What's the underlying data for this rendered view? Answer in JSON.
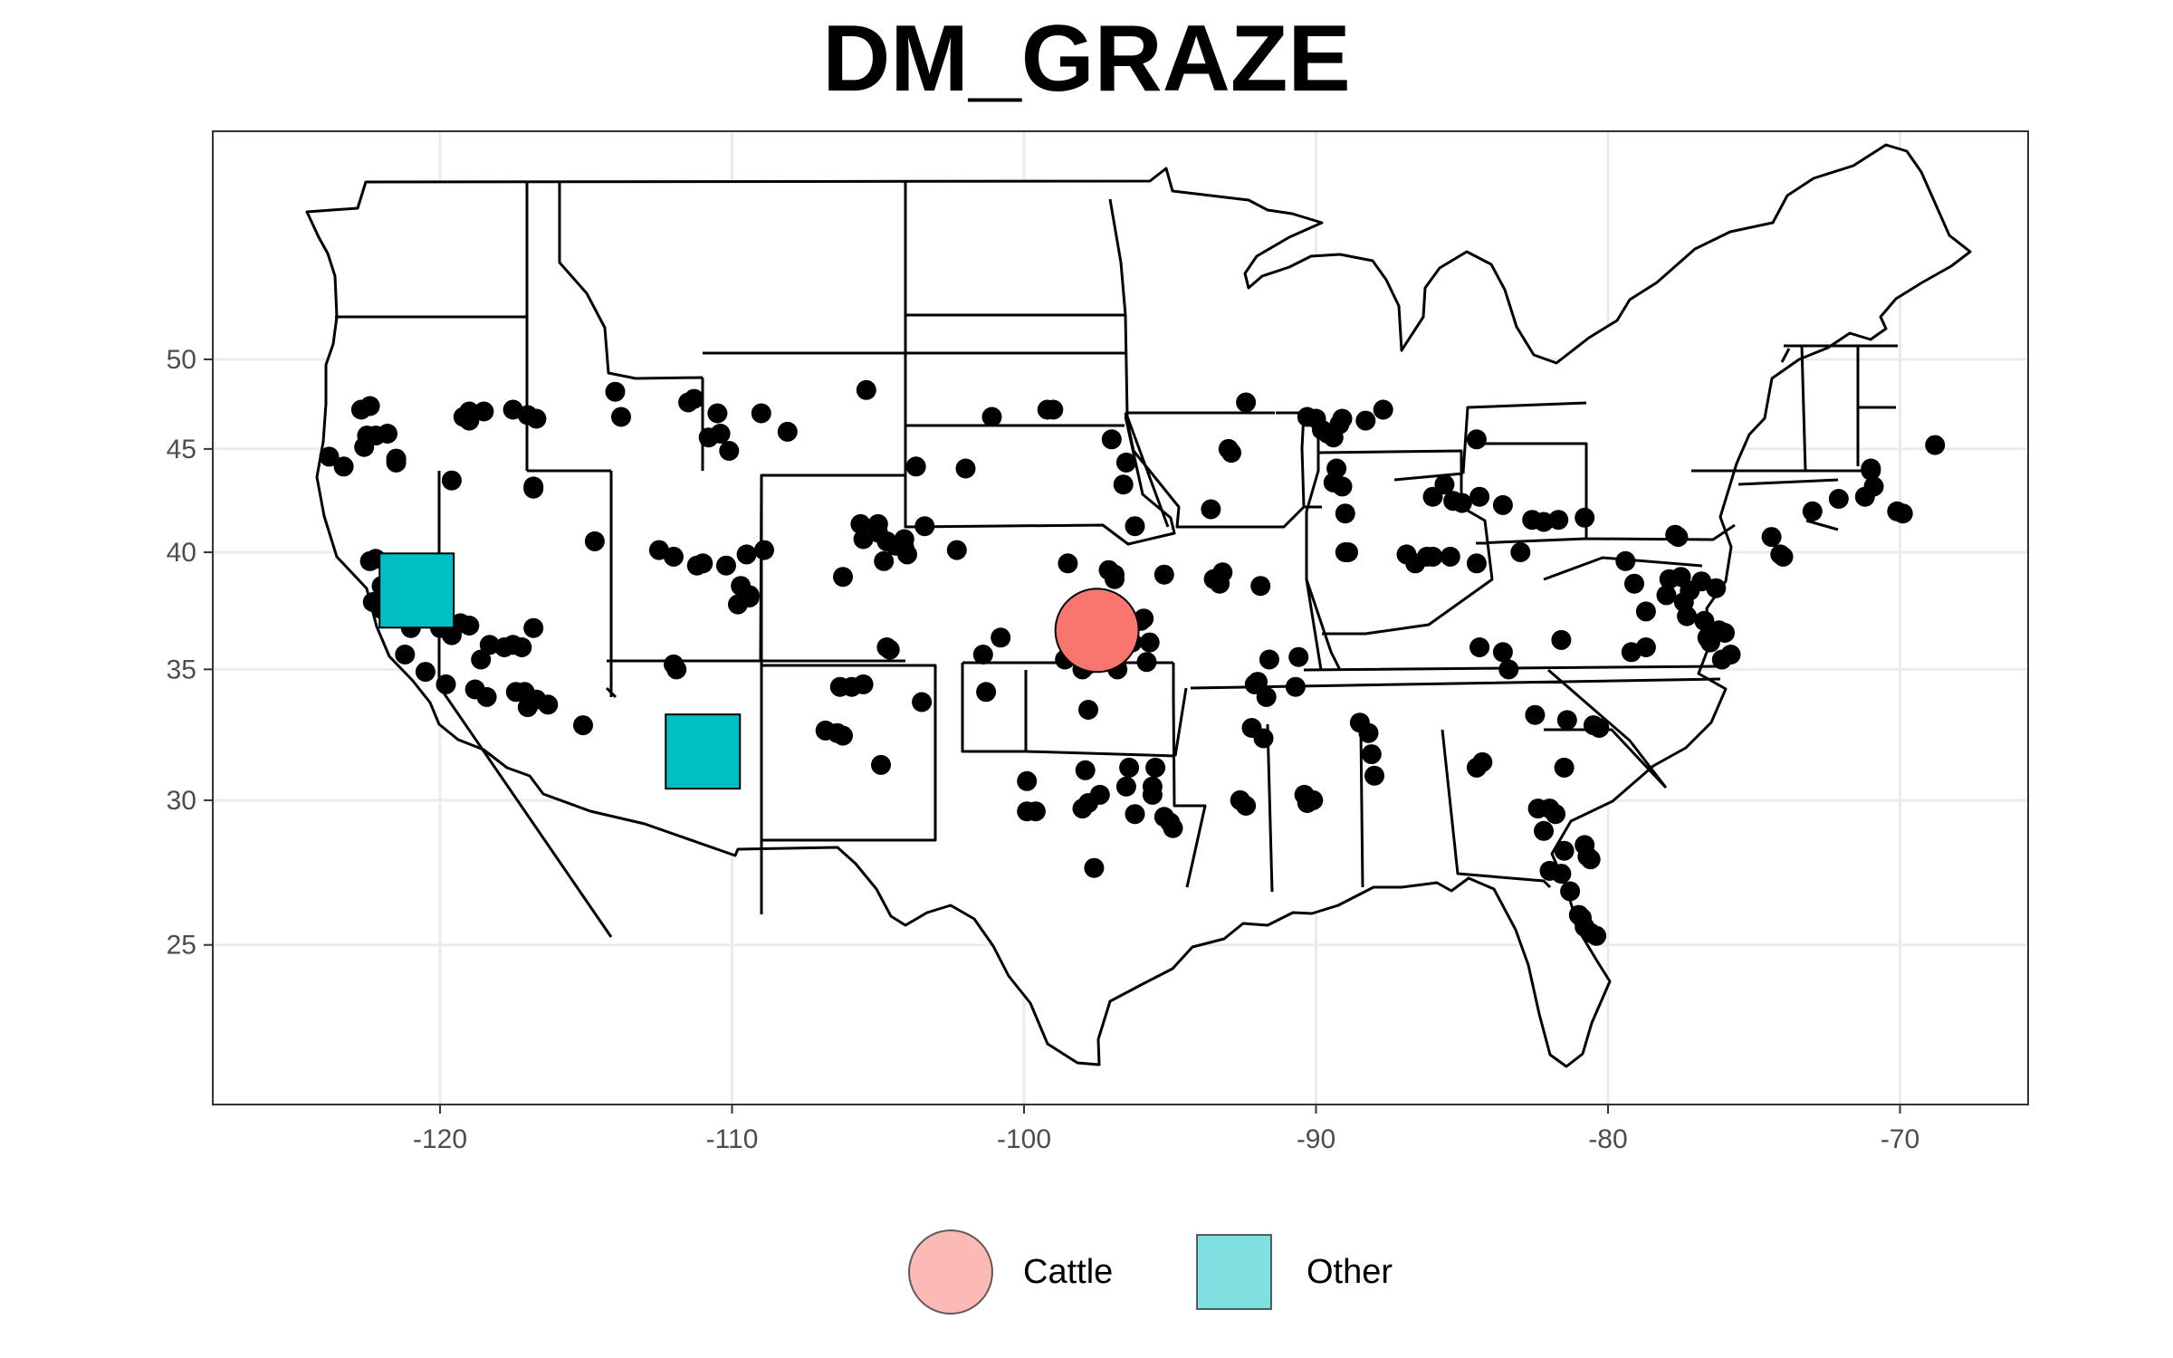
{
  "title": "DM_GRAZE",
  "map": {
    "type": "scatter",
    "x": {
      "ticks": [
        -120,
        -110,
        -100,
        -90,
        -80,
        -70
      ],
      "tick_labels": [
        "-120",
        "-110",
        "-100",
        "-90",
        "-80",
        "-70"
      ],
      "range": [
        -127,
        -65
      ]
    },
    "y": {
      "ticks": [
        25,
        30,
        35,
        40,
        45,
        50
      ],
      "tick_labels": [
        "25",
        "30",
        "35",
        "40",
        "45",
        "50"
      ],
      "range": [
        24,
        50
      ]
    },
    "grid": true,
    "legend_placement": "bottom",
    "legend": [
      {
        "label": "Cattle",
        "shape": "circle",
        "color": "#f8766d"
      },
      {
        "label": "Other",
        "shape": "square",
        "color": "#00bfc4"
      }
    ],
    "highlights": [
      {
        "category": "Cattle",
        "shape": "circle",
        "lon": -97.5,
        "lat": 36.6
      },
      {
        "category": "Other",
        "shape": "square",
        "lon": -120.8,
        "lat": 38.3
      },
      {
        "category": "Other",
        "shape": "square",
        "lon": -111.0,
        "lat": 31.8
      }
    ],
    "sites": [
      [
        -122.4,
        47.3
      ],
      [
        -122.7,
        47.1
      ],
      [
        -121.8,
        45.8
      ],
      [
        -122.2,
        45.7
      ],
      [
        -122.5,
        45.7
      ],
      [
        -123.8,
        44.6
      ],
      [
        -123.3,
        44.1
      ],
      [
        -122.6,
        45.1
      ],
      [
        -121.5,
        44.5
      ],
      [
        -121.5,
        44.3
      ],
      [
        -119.6,
        43.4
      ],
      [
        -116.8,
        43.0
      ],
      [
        -116.8,
        43.1
      ],
      [
        -119.2,
        46.7
      ],
      [
        -119.0,
        47.0
      ],
      [
        -118.5,
        47.0
      ],
      [
        -117.5,
        47.1
      ],
      [
        -117.0,
        46.8
      ],
      [
        -116.7,
        46.6
      ],
      [
        -119.0,
        46.5
      ],
      [
        -114.0,
        48.1
      ],
      [
        -113.8,
        46.7
      ],
      [
        -111.5,
        47.5
      ],
      [
        -111.3,
        47.7
      ],
      [
        -110.5,
        46.9
      ],
      [
        -109.0,
        46.9
      ],
      [
        -108.1,
        45.9
      ],
      [
        -110.4,
        45.8
      ],
      [
        -110.8,
        45.6
      ],
      [
        -110.1,
        44.9
      ],
      [
        -105.4,
        48.2
      ],
      [
        -101.1,
        46.7
      ],
      [
        -99.2,
        47.1
      ],
      [
        -99.0,
        47.1
      ],
      [
        -102.0,
        44.0
      ],
      [
        -103.7,
        44.1
      ],
      [
        -97.0,
        45.5
      ],
      [
        -96.5,
        44.3
      ],
      [
        -96.6,
        43.2
      ],
      [
        -96.2,
        41.2
      ],
      [
        -92.4,
        47.5
      ],
      [
        -93.0,
        45.0
      ],
      [
        -92.9,
        44.8
      ],
      [
        -93.6,
        42.0
      ],
      [
        -90.3,
        46.7
      ],
      [
        -90.0,
        46.6
      ],
      [
        -89.1,
        46.6
      ],
      [
        -89.2,
        46.3
      ],
      [
        -89.8,
        46.0
      ],
      [
        -89.6,
        45.8
      ],
      [
        -89.4,
        45.6
      ],
      [
        -89.3,
        44.0
      ],
      [
        -89.4,
        43.3
      ],
      [
        -89.1,
        43.1
      ],
      [
        -87.7,
        47.1
      ],
      [
        -88.3,
        46.5
      ],
      [
        -84.5,
        45.5
      ],
      [
        -85.6,
        43.2
      ],
      [
        -86.0,
        42.6
      ],
      [
        -85.3,
        42.4
      ],
      [
        -85.0,
        42.3
      ],
      [
        -84.4,
        42.6
      ],
      [
        -83.6,
        42.2
      ],
      [
        -82.6,
        41.5
      ],
      [
        -82.2,
        41.4
      ],
      [
        -81.7,
        41.5
      ],
      [
        -80.8,
        41.6
      ],
      [
        -89.0,
        41.8
      ],
      [
        -88.9,
        40.0
      ],
      [
        -89.0,
        40.0
      ],
      [
        -86.9,
        39.9
      ],
      [
        -86.2,
        39.8
      ],
      [
        -86.0,
        39.8
      ],
      [
        -85.4,
        39.8
      ],
      [
        -86.6,
        39.5
      ],
      [
        -84.5,
        39.5
      ],
      [
        -83.0,
        40.0
      ],
      [
        -77.7,
        40.8
      ],
      [
        -77.6,
        40.7
      ],
      [
        -79.4,
        39.6
      ],
      [
        -74.4,
        40.7
      ],
      [
        -74.0,
        39.8
      ],
      [
        -74.1,
        39.9
      ],
      [
        -71.0,
        43.9
      ],
      [
        -71.0,
        44.0
      ],
      [
        -70.9,
        43.1
      ],
      [
        -71.2,
        42.6
      ],
      [
        -70.1,
        41.9
      ],
      [
        -69.9,
        41.8
      ],
      [
        -73.0,
        41.9
      ],
      [
        -72.1,
        42.5
      ],
      [
        -68.8,
        45.2
      ],
      [
        -79.1,
        38.6
      ],
      [
        -78.7,
        37.4
      ],
      [
        -77.9,
        38.8
      ],
      [
        -77.5,
        38.9
      ],
      [
        -76.8,
        38.7
      ],
      [
        -76.3,
        38.4
      ],
      [
        -77.2,
        38.3
      ],
      [
        -78.0,
        38.1
      ],
      [
        -77.4,
        37.8
      ],
      [
        -76.7,
        37.0
      ],
      [
        -77.3,
        37.2
      ],
      [
        -76.0,
        36.5
      ],
      [
        -76.2,
        36.6
      ],
      [
        -76.5,
        36.1
      ],
      [
        -75.8,
        35.6
      ],
      [
        -76.1,
        35.4
      ],
      [
        -79.2,
        35.7
      ],
      [
        -78.7,
        35.9
      ],
      [
        -76.6,
        36.3
      ],
      [
        -84.4,
        35.9
      ],
      [
        -83.6,
        35.7
      ],
      [
        -83.4,
        35.0
      ],
      [
        -81.6,
        36.2
      ],
      [
        -82.5,
        33.2
      ],
      [
        -81.4,
        33.0
      ],
      [
        -80.3,
        32.7
      ],
      [
        -80.5,
        32.8
      ],
      [
        -81.5,
        31.2
      ],
      [
        -84.5,
        31.2
      ],
      [
        -84.3,
        31.4
      ],
      [
        -88.1,
        31.7
      ],
      [
        -88.2,
        32.5
      ],
      [
        -88.5,
        32.9
      ],
      [
        -88.0,
        30.9
      ],
      [
        -90.1,
        30.0
      ],
      [
        -90.3,
        29.9
      ],
      [
        -90.4,
        30.2
      ],
      [
        -92.6,
        30.0
      ],
      [
        -92.4,
        29.8
      ],
      [
        -91.8,
        32.3
      ],
      [
        -92.2,
        32.7
      ],
      [
        -92.0,
        34.5
      ],
      [
        -92.1,
        34.4
      ],
      [
        -91.6,
        35.4
      ],
      [
        -90.6,
        35.5
      ],
      [
        -90.7,
        34.3
      ],
      [
        -91.7,
        33.9
      ],
      [
        -93.5,
        38.8
      ],
      [
        -93.3,
        38.6
      ],
      [
        -93.2,
        39.1
      ],
      [
        -91.9,
        38.5
      ],
      [
        -82.2,
        28.9
      ],
      [
        -82.4,
        29.7
      ],
      [
        -81.8,
        29.5
      ],
      [
        -82.0,
        29.7
      ],
      [
        -81.5,
        28.2
      ],
      [
        -82.0,
        27.5
      ],
      [
        -81.6,
        27.4
      ],
      [
        -81.3,
        26.8
      ],
      [
        -81.0,
        26.0
      ],
      [
        -80.9,
        25.9
      ],
      [
        -80.8,
        25.6
      ],
      [
        -80.6,
        25.4
      ],
      [
        -80.4,
        25.3
      ],
      [
        -80.6,
        27.9
      ],
      [
        -80.7,
        28.0
      ],
      [
        -80.8,
        28.4
      ],
      [
        -95.8,
        35.3
      ],
      [
        -96.8,
        35.0
      ],
      [
        -97.3,
        36.8
      ],
      [
        -97.5,
        36.7
      ],
      [
        -96.9,
        36.6
      ],
      [
        -96.5,
        36.2
      ],
      [
        -96.3,
        36.1
      ],
      [
        -95.7,
        36.1
      ],
      [
        -98.6,
        35.4
      ],
      [
        -97.1,
        36.4
      ],
      [
        -97.1,
        35.3
      ],
      [
        -97.8,
        35.2
      ],
      [
        -96.7,
        37.4
      ],
      [
        -96.0,
        37.0
      ],
      [
        -95.9,
        37.1
      ],
      [
        -98.0,
        35.0
      ],
      [
        -96.9,
        39.0
      ],
      [
        -95.2,
        39.0
      ],
      [
        -96.9,
        38.8
      ],
      [
        -97.1,
        39.2
      ],
      [
        -98.5,
        39.5
      ],
      [
        -101.4,
        35.6
      ],
      [
        -100.8,
        36.3
      ],
      [
        -97.8,
        33.4
      ],
      [
        -97.9,
        31.1
      ],
      [
        -99.9,
        30.7
      ],
      [
        -101.3,
        34.1
      ],
      [
        -96.4,
        31.2
      ],
      [
        -95.5,
        31.2
      ],
      [
        -97.4,
        30.2
      ],
      [
        -96.5,
        30.5
      ],
      [
        -95.6,
        30.5
      ],
      [
        -95.6,
        30.2
      ],
      [
        -95.2,
        29.4
      ],
      [
        -95.0,
        29.2
      ],
      [
        -94.9,
        29.0
      ],
      [
        -96.2,
        29.5
      ],
      [
        -97.6,
        27.6
      ],
      [
        -98.0,
        29.7
      ],
      [
        -97.8,
        29.9
      ],
      [
        -99.9,
        29.6
      ],
      [
        -99.6,
        29.6
      ],
      [
        -104.7,
        35.9
      ],
      [
        -104.6,
        35.8
      ],
      [
        -106.3,
        34.3
      ],
      [
        -105.9,
        34.3
      ],
      [
        -105.5,
        34.4
      ],
      [
        -106.8,
        32.6
      ],
      [
        -106.4,
        32.5
      ],
      [
        -106.2,
        32.4
      ],
      [
        -104.9,
        31.3
      ],
      [
        -103.5,
        33.7
      ],
      [
        -111.5,
        31.6
      ],
      [
        -111.1,
        31.9
      ],
      [
        -110.5,
        31.4
      ],
      [
        -110.9,
        31.5
      ],
      [
        -110.4,
        31.6
      ],
      [
        -111.9,
        35.0
      ],
      [
        -112.0,
        35.2
      ],
      [
        -110.6,
        32.4
      ],
      [
        -110.3,
        31.8
      ],
      [
        -105.6,
        41.3
      ],
      [
        -105.0,
        41.3
      ],
      [
        -105.0,
        40.9
      ],
      [
        -105.5,
        40.6
      ],
      [
        -104.7,
        40.5
      ],
      [
        -104.4,
        40.3
      ],
      [
        -104.0,
        39.9
      ],
      [
        -104.8,
        39.6
      ],
      [
        -104.1,
        40.6
      ],
      [
        -103.4,
        41.2
      ],
      [
        -104.1,
        40.2
      ],
      [
        -102.3,
        40.1
      ],
      [
        -106.2,
        38.9
      ],
      [
        -108.9,
        40.1
      ],
      [
        -109.5,
        39.9
      ],
      [
        -109.7,
        38.5
      ],
      [
        -109.8,
        37.7
      ],
      [
        -109.4,
        38.1
      ],
      [
        -109.4,
        38.0
      ],
      [
        -110.2,
        39.4
      ],
      [
        -111.0,
        39.5
      ],
      [
        -111.2,
        39.4
      ],
      [
        -112.5,
        40.1
      ],
      [
        -112.0,
        39.8
      ],
      [
        -116.8,
        36.7
      ],
      [
        -114.7,
        40.5
      ],
      [
        -120.3,
        39.3
      ],
      [
        -121.1,
        38.6
      ],
      [
        -121.3,
        38.6
      ],
      [
        -121.7,
        38.4
      ],
      [
        -121.9,
        38.0
      ],
      [
        -122.3,
        37.8
      ],
      [
        -122.0,
        37.5
      ],
      [
        -121.6,
        37.4
      ],
      [
        -121.2,
        37.4
      ],
      [
        -120.8,
        37.2
      ],
      [
        -121.0,
        36.7
      ],
      [
        -120.0,
        36.7
      ],
      [
        -119.6,
        36.4
      ],
      [
        -119.3,
        36.9
      ],
      [
        -119.0,
        36.8
      ],
      [
        -118.3,
        36.0
      ],
      [
        -117.8,
        35.9
      ],
      [
        -117.5,
        36.0
      ],
      [
        -117.2,
        35.9
      ],
      [
        -118.6,
        35.4
      ],
      [
        -119.8,
        34.4
      ],
      [
        -120.5,
        34.9
      ],
      [
        -121.2,
        35.6
      ],
      [
        -117.4,
        34.1
      ],
      [
        -117.1,
        34.1
      ],
      [
        -116.7,
        33.8
      ],
      [
        -116.3,
        33.6
      ],
      [
        -115.1,
        32.8
      ],
      [
        -118.8,
        34.2
      ],
      [
        -118.4,
        33.9
      ],
      [
        -117.0,
        33.5
      ],
      [
        -122.4,
        39.6
      ],
      [
        -122.2,
        39.7
      ],
      [
        -122.0,
        38.5
      ],
      [
        -120.9,
        39.2
      ],
      [
        -120.3,
        38.9
      ],
      [
        -119.9,
        38.4
      ]
    ]
  }
}
